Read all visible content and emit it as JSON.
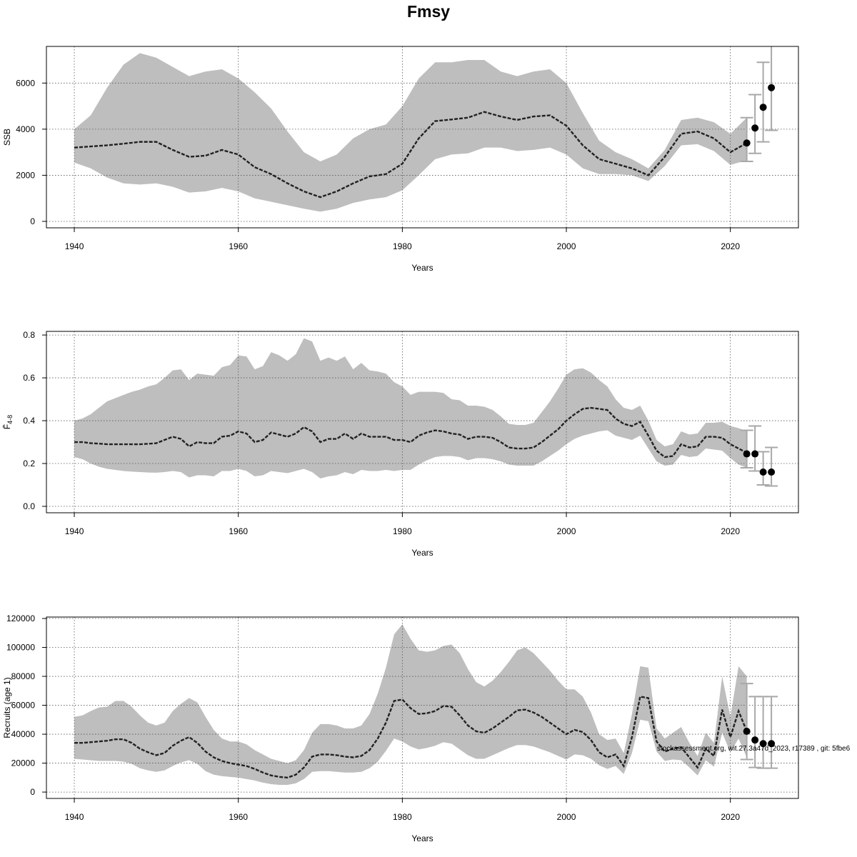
{
  "title": "Fmsy",
  "chart_data": [
    {
      "type": "band-line",
      "ylabel": "SSB",
      "xlabel": "Years",
      "xlim": [
        1936.6,
        2028.3
      ],
      "xticks": [
        1940,
        1960,
        1980,
        2000,
        2020
      ],
      "ylim": [
        -280,
        7590
      ],
      "yticks": [
        0,
        2000,
        4000,
        6000
      ],
      "grid": true,
      "band_color": "#bebebe",
      "line_color": "#222222",
      "point_color": "#000000",
      "errorbar_color": "#a8a8a8",
      "x": [
        1940,
        1942,
        1944,
        1946,
        1948,
        1950,
        1952,
        1954,
        1956,
        1958,
        1960,
        1962,
        1964,
        1966,
        1968,
        1970,
        1972,
        1974,
        1976,
        1978,
        1980,
        1982,
        1984,
        1986,
        1988,
        1990,
        1992,
        1994,
        1996,
        1998,
        2000,
        2002,
        2004,
        2006,
        2008,
        2010,
        2012,
        2014,
        2016,
        2018,
        2020,
        2022
      ],
      "values": [
        3200,
        3250,
        3300,
        3370,
        3450,
        3450,
        3100,
        2800,
        2850,
        3100,
        2900,
        2350,
        2050,
        1650,
        1300,
        1050,
        1300,
        1650,
        1950,
        2050,
        2500,
        3600,
        4350,
        4420,
        4500,
        4750,
        4550,
        4400,
        4550,
        4600,
        4150,
        3300,
        2700,
        2500,
        2300,
        2000,
        2800,
        3800,
        3900,
        3600,
        3000,
        3400
      ],
      "upper": [
        4000,
        4600,
        5800,
        6800,
        7300,
        7100,
        6700,
        6300,
        6500,
        6600,
        6200,
        5600,
        4900,
        3900,
        3000,
        2600,
        2900,
        3600,
        4000,
        4200,
        5000,
        6200,
        6900,
        6900,
        7000,
        7000,
        6500,
        6300,
        6500,
        6600,
        6000,
        4700,
        3500,
        3000,
        2700,
        2300,
        3100,
        4400,
        4500,
        4300,
        3800,
        4500
      ],
      "lower": [
        2550,
        2300,
        1900,
        1650,
        1600,
        1650,
        1500,
        1250,
        1300,
        1450,
        1300,
        1000,
        850,
        700,
        550,
        420,
        550,
        800,
        950,
        1050,
        1350,
        2000,
        2700,
        2900,
        2950,
        3200,
        3200,
        3050,
        3100,
        3200,
        2900,
        2300,
        2050,
        2050,
        2000,
        1750,
        2400,
        3300,
        3350,
        3050,
        2450,
        2650
      ],
      "forecast": {
        "x": [
          2022,
          2023,
          2024,
          2025
        ],
        "values": [
          3400,
          4050,
          4950,
          5800
        ],
        "lower": [
          2600,
          2950,
          3450,
          3950
        ],
        "upper": [
          4500,
          5500,
          6900,
          7800
        ]
      }
    },
    {
      "type": "band-line",
      "ylabel": "F̄",
      "ylabel_subscript": "4-8",
      "xlabel": "Years",
      "xlim": [
        1936.6,
        2028.3
      ],
      "xticks": [
        1940,
        1960,
        1980,
        2000,
        2020
      ],
      "ylim": [
        -0.03,
        0.817
      ],
      "yticks": [
        {
          "value": 0,
          "label": "0.0"
        },
        0.2,
        0.4,
        0.6,
        0.8
      ],
      "grid": true,
      "band_color": "#bebebe",
      "line_color": "#222222",
      "point_color": "#000000",
      "errorbar_color": "#a8a8a8",
      "x": [
        1940,
        1941,
        1942,
        1943,
        1944,
        1945,
        1946,
        1947,
        1948,
        1949,
        1950,
        1951,
        1952,
        1953,
        1954,
        1955,
        1956,
        1957,
        1958,
        1959,
        1960,
        1961,
        1962,
        1963,
        1964,
        1965,
        1966,
        1967,
        1968,
        1969,
        1970,
        1971,
        1972,
        1973,
        1974,
        1975,
        1976,
        1977,
        1978,
        1979,
        1980,
        1981,
        1982,
        1983,
        1984,
        1985,
        1986,
        1987,
        1988,
        1989,
        1990,
        1991,
        1992,
        1993,
        1994,
        1995,
        1996,
        1997,
        1998,
        1999,
        2000,
        2001,
        2002,
        2003,
        2004,
        2005,
        2006,
        2007,
        2008,
        2009,
        2010,
        2011,
        2012,
        2013,
        2014,
        2015,
        2016,
        2017,
        2018,
        2019,
        2020,
        2021,
        2022
      ],
      "values": [
        0.3,
        0.3,
        0.295,
        0.293,
        0.29,
        0.29,
        0.29,
        0.29,
        0.29,
        0.292,
        0.295,
        0.31,
        0.325,
        0.315,
        0.28,
        0.3,
        0.295,
        0.295,
        0.325,
        0.33,
        0.35,
        0.34,
        0.3,
        0.31,
        0.345,
        0.335,
        0.325,
        0.34,
        0.37,
        0.35,
        0.3,
        0.315,
        0.315,
        0.34,
        0.315,
        0.34,
        0.325,
        0.325,
        0.325,
        0.31,
        0.31,
        0.3,
        0.33,
        0.345,
        0.355,
        0.35,
        0.34,
        0.335,
        0.315,
        0.325,
        0.325,
        0.32,
        0.3,
        0.275,
        0.27,
        0.27,
        0.275,
        0.3,
        0.33,
        0.36,
        0.4,
        0.43,
        0.455,
        0.46,
        0.455,
        0.45,
        0.41,
        0.385,
        0.375,
        0.395,
        0.33,
        0.26,
        0.23,
        0.235,
        0.29,
        0.275,
        0.28,
        0.325,
        0.325,
        0.32,
        0.29,
        0.27,
        0.25
      ],
      "upper": [
        0.4,
        0.41,
        0.43,
        0.46,
        0.49,
        0.505,
        0.52,
        0.535,
        0.545,
        0.56,
        0.57,
        0.6,
        0.635,
        0.64,
        0.59,
        0.62,
        0.615,
        0.61,
        0.65,
        0.66,
        0.705,
        0.7,
        0.64,
        0.655,
        0.72,
        0.705,
        0.68,
        0.71,
        0.785,
        0.77,
        0.68,
        0.695,
        0.68,
        0.7,
        0.64,
        0.67,
        0.635,
        0.63,
        0.62,
        0.58,
        0.56,
        0.52,
        0.535,
        0.535,
        0.535,
        0.53,
        0.5,
        0.495,
        0.47,
        0.47,
        0.465,
        0.45,
        0.42,
        0.385,
        0.38,
        0.38,
        0.39,
        0.44,
        0.49,
        0.55,
        0.615,
        0.64,
        0.645,
        0.625,
        0.59,
        0.56,
        0.5,
        0.46,
        0.45,
        0.47,
        0.4,
        0.31,
        0.28,
        0.29,
        0.35,
        0.335,
        0.34,
        0.39,
        0.39,
        0.395,
        0.375,
        0.365,
        0.35
      ],
      "lower": [
        0.23,
        0.22,
        0.2,
        0.185,
        0.175,
        0.17,
        0.165,
        0.162,
        0.16,
        0.158,
        0.157,
        0.16,
        0.165,
        0.16,
        0.135,
        0.145,
        0.145,
        0.14,
        0.165,
        0.165,
        0.175,
        0.165,
        0.14,
        0.145,
        0.165,
        0.16,
        0.155,
        0.165,
        0.175,
        0.16,
        0.13,
        0.14,
        0.145,
        0.16,
        0.15,
        0.17,
        0.165,
        0.165,
        0.17,
        0.165,
        0.17,
        0.17,
        0.195,
        0.215,
        0.23,
        0.235,
        0.235,
        0.23,
        0.215,
        0.225,
        0.225,
        0.22,
        0.21,
        0.195,
        0.19,
        0.19,
        0.19,
        0.21,
        0.235,
        0.26,
        0.29,
        0.315,
        0.33,
        0.34,
        0.35,
        0.355,
        0.33,
        0.32,
        0.31,
        0.33,
        0.27,
        0.21,
        0.19,
        0.195,
        0.24,
        0.23,
        0.235,
        0.27,
        0.265,
        0.26,
        0.225,
        0.195,
        0.18
      ],
      "forecast": {
        "x": [
          2022,
          2023,
          2024,
          2025
        ],
        "values": [
          0.245,
          0.245,
          0.16,
          0.16
        ],
        "lower": [
          0.18,
          0.165,
          0.1,
          0.095
        ],
        "upper": [
          0.355,
          0.375,
          0.255,
          0.275
        ]
      }
    },
    {
      "type": "band-line",
      "ylabel": "Recruits (age 1)",
      "xlabel": "Years",
      "xlim": [
        1936.6,
        2028.3
      ],
      "xticks": [
        1940,
        1960,
        1980,
        2000,
        2020
      ],
      "ylim": [
        -4400,
        121000
      ],
      "yticks": [
        0,
        20000,
        40000,
        60000,
        80000,
        100000,
        120000
      ],
      "grid": true,
      "band_color": "#bebebe",
      "line_color": "#222222",
      "point_color": "#000000",
      "errorbar_color": "#a8a8a8",
      "annotation": "stockassessment.org, wit.27.3a47d_2023, r17389 , git: 5fbe6",
      "x": [
        1940,
        1941,
        1942,
        1943,
        1944,
        1945,
        1946,
        1947,
        1948,
        1949,
        1950,
        1951,
        1952,
        1953,
        1954,
        1955,
        1956,
        1957,
        1958,
        1959,
        1960,
        1961,
        1962,
        1963,
        1964,
        1965,
        1966,
        1967,
        1968,
        1969,
        1970,
        1971,
        1972,
        1973,
        1974,
        1975,
        1976,
        1977,
        1978,
        1979,
        1980,
        1981,
        1982,
        1983,
        1984,
        1985,
        1986,
        1987,
        1988,
        1989,
        1990,
        1991,
        1992,
        1993,
        1994,
        1995,
        1996,
        1997,
        1998,
        1999,
        2000,
        2001,
        2002,
        2003,
        2004,
        2005,
        2006,
        2007,
        2008,
        2009,
        2010,
        2011,
        2012,
        2013,
        2014,
        2015,
        2016,
        2017,
        2018,
        2019,
        2020,
        2021,
        2022
      ],
      "values": [
        34000,
        34000,
        34500,
        35000,
        35500,
        36500,
        36500,
        34000,
        30000,
        27500,
        25500,
        27000,
        32000,
        35500,
        38000,
        34000,
        28000,
        24000,
        21500,
        20000,
        19000,
        18000,
        16000,
        13500,
        11500,
        10500,
        10000,
        12000,
        17000,
        24500,
        26000,
        26000,
        25500,
        24500,
        24000,
        25000,
        29000,
        37000,
        48000,
        63000,
        64000,
        58000,
        54000,
        54500,
        56000,
        59500,
        59000,
        53000,
        46000,
        42000,
        41000,
        44000,
        48000,
        52000,
        56500,
        57000,
        55000,
        52000,
        48000,
        44000,
        40000,
        43000,
        41500,
        36000,
        27500,
        24000,
        26000,
        18000,
        38000,
        66000,
        65000,
        35000,
        28000,
        30000,
        31000,
        24000,
        17000,
        30000,
        25000,
        57000,
        38000,
        56000,
        42000
      ],
      "upper": [
        52000,
        53000,
        56000,
        58500,
        59000,
        63000,
        63000,
        59000,
        53000,
        48000,
        46000,
        48000,
        56000,
        61000,
        65000,
        62000,
        52000,
        43000,
        37000,
        35000,
        35000,
        33000,
        29000,
        26000,
        23000,
        21500,
        20000,
        22000,
        29000,
        41000,
        47000,
        47000,
        46000,
        44000,
        44000,
        46000,
        54000,
        68000,
        86000,
        109000,
        116000,
        106000,
        98000,
        97000,
        98000,
        101000,
        102000,
        96000,
        85000,
        76000,
        73000,
        77000,
        83000,
        90000,
        98000,
        100000,
        96000,
        90000,
        84000,
        77000,
        71000,
        71000,
        66000,
        55000,
        40000,
        36000,
        37000,
        27000,
        54000,
        87000,
        86000,
        44000,
        37000,
        41000,
        45000,
        34000,
        25000,
        41000,
        34000,
        80000,
        52000,
        87000,
        80000
      ],
      "lower": [
        23000,
        22500,
        22000,
        21500,
        21500,
        21500,
        21000,
        19500,
        16500,
        15000,
        14000,
        15000,
        18000,
        20500,
        22000,
        19500,
        14500,
        12000,
        11000,
        10500,
        10000,
        9000,
        8000,
        6500,
        5500,
        5000,
        5000,
        6000,
        9000,
        14000,
        14500,
        14500,
        14000,
        13500,
        13500,
        14000,
        16500,
        21000,
        28500,
        37000,
        35000,
        31500,
        29500,
        30500,
        32000,
        34500,
        33500,
        29500,
        25500,
        23000,
        23000,
        25500,
        28000,
        30500,
        32500,
        32500,
        31500,
        29500,
        27500,
        25000,
        22500,
        26000,
        25500,
        23000,
        18500,
        16000,
        18000,
        12500,
        27000,
        50000,
        49000,
        28000,
        21500,
        22500,
        22000,
        17000,
        11500,
        22000,
        17500,
        41000,
        27500,
        37000,
        24000
      ],
      "forecast": {
        "x": [
          2022,
          2023,
          2024,
          2025
        ],
        "values": [
          42000,
          36000,
          33500,
          33500
        ],
        "lower": [
          22500,
          17000,
          16500,
          16500
        ],
        "upper": [
          75000,
          66000,
          66000,
          66000
        ]
      }
    }
  ]
}
